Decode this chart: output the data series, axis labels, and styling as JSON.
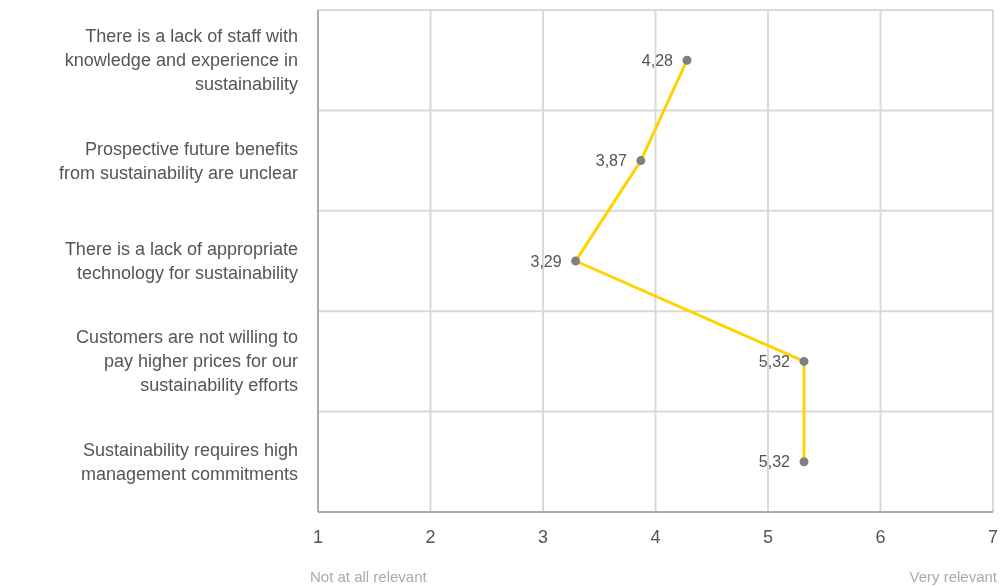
{
  "chart_data": {
    "type": "line",
    "orientation": "horizontal",
    "categories": [
      "There is a lack of staff with knowledge and experience in sustainability",
      "Prospective future benefits from sustainability are unclear",
      "There is a lack of appropriate technology for sustainability",
      "Customers are not willing to pay higher prices for our sustainability efforts",
      "Sustainability requires high management commitments"
    ],
    "values": [
      4.28,
      3.87,
      3.29,
      5.32,
      5.32
    ],
    "value_labels": [
      "4,28",
      "3,87",
      "3,29",
      "5,32",
      "5,32"
    ],
    "color": "#ffd200",
    "marker": "circle",
    "line_style": "solid",
    "xlim": [
      1,
      7
    ],
    "xticks": [
      1,
      2,
      3,
      4,
      5,
      6,
      7
    ],
    "grid": true,
    "annotations": [
      "Not at all relevant",
      "Very relevant"
    ]
  }
}
